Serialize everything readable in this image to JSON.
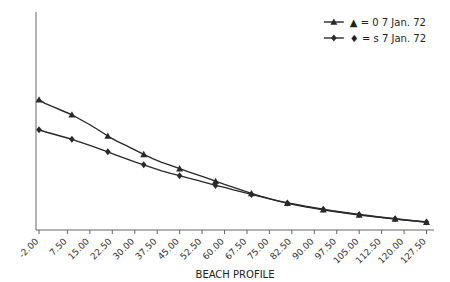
{
  "chart_data": {
    "type": "line",
    "xlabel": "BEACH PROFILE",
    "x": [
      -2,
      0,
      3,
      6,
      9,
      12,
      15,
      18,
      21,
      24,
      27,
      30,
      33,
      36,
      39,
      42,
      45,
      48,
      51,
      54,
      57,
      60,
      63,
      66,
      69,
      72,
      75,
      78,
      81,
      84,
      87,
      90,
      93,
      96,
      99,
      102,
      105,
      108,
      111,
      114,
      117,
      120,
      123,
      126,
      127.5
    ],
    "series": [
      {
        "name": "▲  = 0  7 Jan. 72",
        "color": "#2a2a2a",
        "marker": "triangle",
        "values": [
          6.0,
          5.85,
          5.7,
          5.55,
          5.4,
          5.2,
          5.0,
          4.78,
          4.55,
          4.35,
          4.18,
          4.0,
          3.82,
          3.65,
          3.5,
          3.38,
          3.25,
          3.12,
          3.0,
          2.88,
          2.75,
          2.62,
          2.5,
          2.38,
          2.26,
          2.15,
          2.05,
          1.95,
          1.87,
          1.8,
          1.73,
          1.67,
          1.61,
          1.55,
          1.5,
          1.45,
          1.4,
          1.36,
          1.32,
          1.28,
          1.24,
          1.2,
          1.17,
          1.13,
          1.11
        ]
      },
      {
        "name": "♦  = s  7 Jan. 72",
        "color": "#2a2a2a",
        "marker": "diamond",
        "values": [
          4.8,
          4.72,
          4.62,
          4.52,
          4.42,
          4.3,
          4.18,
          4.05,
          3.92,
          3.78,
          3.65,
          3.52,
          3.4,
          3.28,
          3.16,
          3.06,
          2.97,
          2.87,
          2.78,
          2.68,
          2.58,
          2.5,
          2.4,
          2.31,
          2.22,
          2.13,
          2.04,
          1.96,
          1.88,
          1.82,
          1.75,
          1.69,
          1.63,
          1.57,
          1.52,
          1.47,
          1.42,
          1.38,
          1.33,
          1.29,
          1.25,
          1.21,
          1.17,
          1.14,
          1.12
        ]
      }
    ],
    "xlim": [
      -3,
      130
    ],
    "ylim": [
      0.8,
      9.5
    ],
    "xticks": [
      {
        "value": -2.0,
        "label": "-2.00"
      },
      {
        "value": 7.5,
        "label": "7.50"
      },
      {
        "value": 15.0,
        "label": "15.00"
      },
      {
        "value": 22.5,
        "label": "22.50"
      },
      {
        "value": 30.0,
        "label": "30.00"
      },
      {
        "value": 37.5,
        "label": "37.50"
      },
      {
        "value": 45.0,
        "label": "45.00"
      },
      {
        "value": 52.5,
        "label": "52.50"
      },
      {
        "value": 60.0,
        "label": "60.00"
      },
      {
        "value": 67.5,
        "label": "67.50"
      },
      {
        "value": 75.0,
        "label": "75.00"
      },
      {
        "value": 82.5,
        "label": "82.50"
      },
      {
        "value": 90.0,
        "label": "90.00"
      },
      {
        "value": 97.5,
        "label": "97.50"
      },
      {
        "value": 105.0,
        "label": "105.00"
      },
      {
        "value": 112.5,
        "label": "112.50"
      },
      {
        "value": 120.0,
        "label": "120.00"
      },
      {
        "value": 127.5,
        "label": "127.50"
      }
    ],
    "tick_labels": "x",
    "legend": "upper right"
  }
}
